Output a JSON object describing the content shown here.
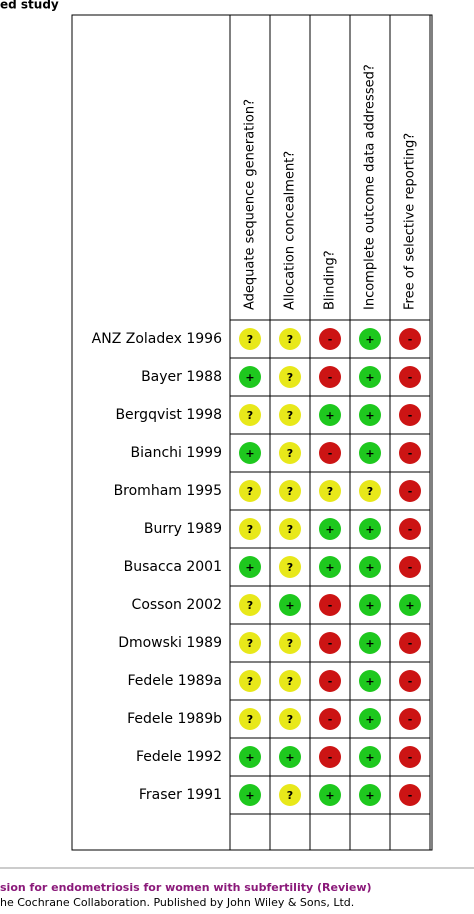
{
  "header": {
    "title": "ed study"
  },
  "table": {
    "columns": [
      "Adequate sequence generation?",
      "Allocation concealment?",
      "Blinding?",
      "Incomplete outcome data addressed?",
      "Free of selective reporting?"
    ],
    "colors": {
      "+": "#1ec81e",
      "?": "#e8e81a",
      "-": "#cc1414"
    },
    "rows": [
      {
        "study": "ANZ Zoladex 1996",
        "judgements": [
          "?",
          "?",
          "-",
          "+",
          "-"
        ]
      },
      {
        "study": "Bayer 1988",
        "judgements": [
          "+",
          "?",
          "-",
          "+",
          "-"
        ]
      },
      {
        "study": "Bergqvist 1998",
        "judgements": [
          "?",
          "?",
          "+",
          "+",
          "-"
        ]
      },
      {
        "study": "Bianchi 1999",
        "judgements": [
          "+",
          "?",
          "-",
          "+",
          "-"
        ]
      },
      {
        "study": "Bromham 1995",
        "judgements": [
          "?",
          "?",
          "?",
          "?",
          "-"
        ]
      },
      {
        "study": "Burry 1989",
        "judgements": [
          "?",
          "?",
          "+",
          "+",
          "-"
        ]
      },
      {
        "study": "Busacca 2001",
        "judgements": [
          "+",
          "?",
          "+",
          "+",
          "-"
        ]
      },
      {
        "study": "Cosson 2002",
        "judgements": [
          "?",
          "+",
          "-",
          "+",
          "+"
        ]
      },
      {
        "study": "Dmowski 1989",
        "judgements": [
          "?",
          "?",
          "-",
          "+",
          "-"
        ]
      },
      {
        "study": "Fedele 1989a",
        "judgements": [
          "?",
          "?",
          "-",
          "+",
          "-"
        ]
      },
      {
        "study": "Fedele 1989b",
        "judgements": [
          "?",
          "?",
          "-",
          "+",
          "-"
        ]
      },
      {
        "study": "Fedele 1992",
        "judgements": [
          "+",
          "+",
          "-",
          "+",
          "-"
        ]
      },
      {
        "study": "Fraser 1991",
        "judgements": [
          "+",
          "?",
          "+",
          "+",
          "-"
        ]
      }
    ]
  },
  "footer": {
    "title": "sion for endometriosis for women with subfertility (Review)",
    "copyright": "he Cochrane Collaboration. Published by John Wiley & Sons, Ltd."
  }
}
